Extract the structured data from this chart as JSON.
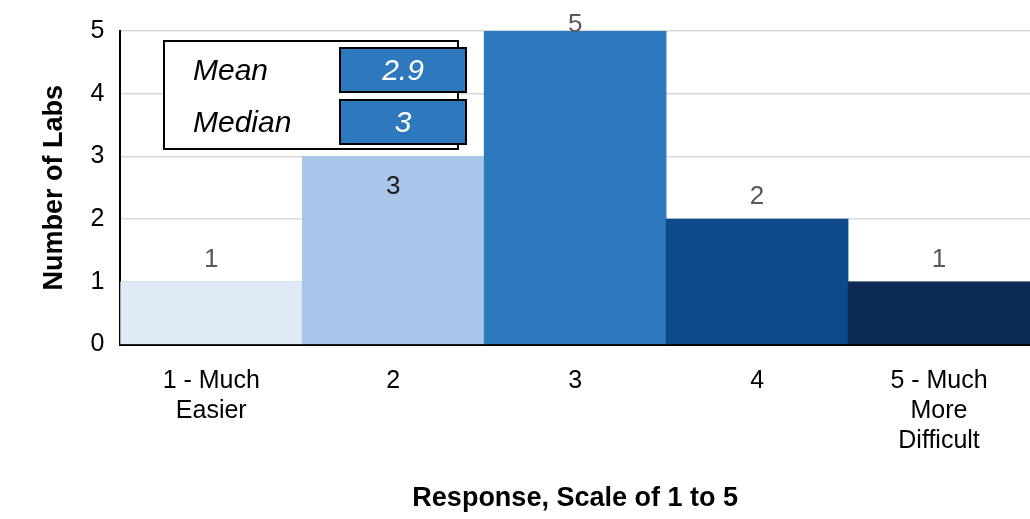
{
  "chart_data": {
    "type": "bar",
    "xlabel": "Response, Scale of 1 to 5",
    "ylabel": "Number of Labs",
    "categories": [
      "1 - Much Easier",
      "2",
      "3",
      "4",
      "5 - Much More Difficult"
    ],
    "values": [
      1,
      3,
      5,
      2,
      1
    ],
    "colors": [
      "#deebf7",
      "#a9c6e8",
      "#2e78bd",
      "#0e4a8a",
      "#0d2b54"
    ],
    "ylim": [
      0,
      5
    ],
    "yticks": [
      0,
      1,
      2,
      3,
      4,
      5
    ],
    "grid": "y",
    "legend": false,
    "data_labels": true,
    "annotations": [
      "Mean",
      "2.9",
      "Median",
      "3"
    ]
  }
}
